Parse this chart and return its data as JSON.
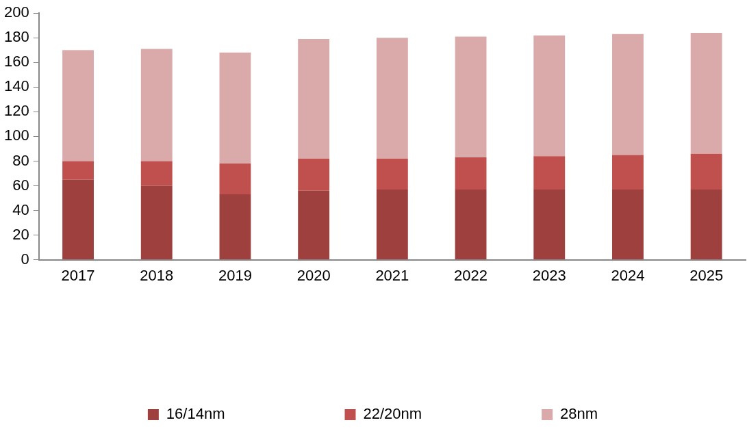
{
  "chart_data": {
    "type": "bar",
    "stacked": true,
    "categories": [
      "2017",
      "2018",
      "2019",
      "2020",
      "2021",
      "2022",
      "2023",
      "2024",
      "2025"
    ],
    "series": [
      {
        "name": "16/14nm",
        "color": "#9e413e",
        "values": [
          65,
          60,
          53,
          56,
          57,
          57,
          57,
          57,
          57
        ]
      },
      {
        "name": "22/20nm",
        "color": "#c0504d",
        "values": [
          15,
          20,
          25,
          26,
          25,
          26,
          27,
          28,
          29
        ]
      },
      {
        "name": "28nm",
        "color": "#daaaab",
        "values": [
          90,
          91,
          90,
          97,
          98,
          98,
          98,
          98,
          98
        ]
      }
    ],
    "ylim": [
      0,
      200
    ],
    "yticks": [
      0,
      20,
      40,
      60,
      80,
      100,
      120,
      140,
      160,
      180,
      200
    ],
    "grid": false,
    "legend": "bottom"
  }
}
